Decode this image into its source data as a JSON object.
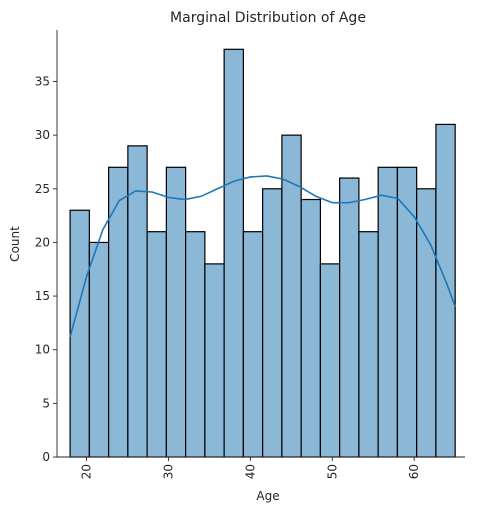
{
  "chart_data": {
    "type": "bar",
    "title": "Marginal Distribution of Age",
    "xlabel": "Age",
    "ylabel": "Count",
    "bin_edges": [
      18,
      20.35,
      22.7,
      25.05,
      27.4,
      29.75,
      32.1,
      34.45,
      36.8,
      39.15,
      41.5,
      43.85,
      46.2,
      48.55,
      50.9,
      53.25,
      55.6,
      57.95,
      60.3,
      62.65,
      65
    ],
    "values": [
      23,
      20,
      27,
      29,
      21,
      27,
      21,
      18,
      38,
      21,
      25,
      30,
      24,
      18,
      26,
      21,
      27,
      27,
      25,
      31
    ],
    "kde": {
      "x": [
        18,
        20,
        22,
        24,
        26,
        28,
        30,
        32,
        34,
        36,
        38,
        40,
        42,
        44,
        46,
        48,
        50,
        52,
        54,
        56,
        58,
        60,
        62,
        64,
        65
      ],
      "y": [
        11.2,
        16.8,
        21.2,
        23.9,
        24.8,
        24.7,
        24.2,
        24.0,
        24.3,
        25.0,
        25.7,
        26.1,
        26.2,
        25.9,
        25.2,
        24.3,
        23.7,
        23.7,
        24.0,
        24.4,
        24.1,
        22.4,
        19.8,
        16.1,
        14.0
      ]
    },
    "xticks": [
      20,
      30,
      40,
      50,
      60
    ],
    "yticks": [
      0,
      5,
      10,
      15,
      20,
      25,
      30,
      35
    ],
    "xlim": [
      16.4,
      66.2
    ],
    "ylim": [
      0,
      39.8
    ],
    "grid": false,
    "colors": {
      "bar_fill": "#8cb8d8",
      "bar_edge": "#000000",
      "kde_line": "#1f77b4",
      "axis": "#262626"
    }
  }
}
